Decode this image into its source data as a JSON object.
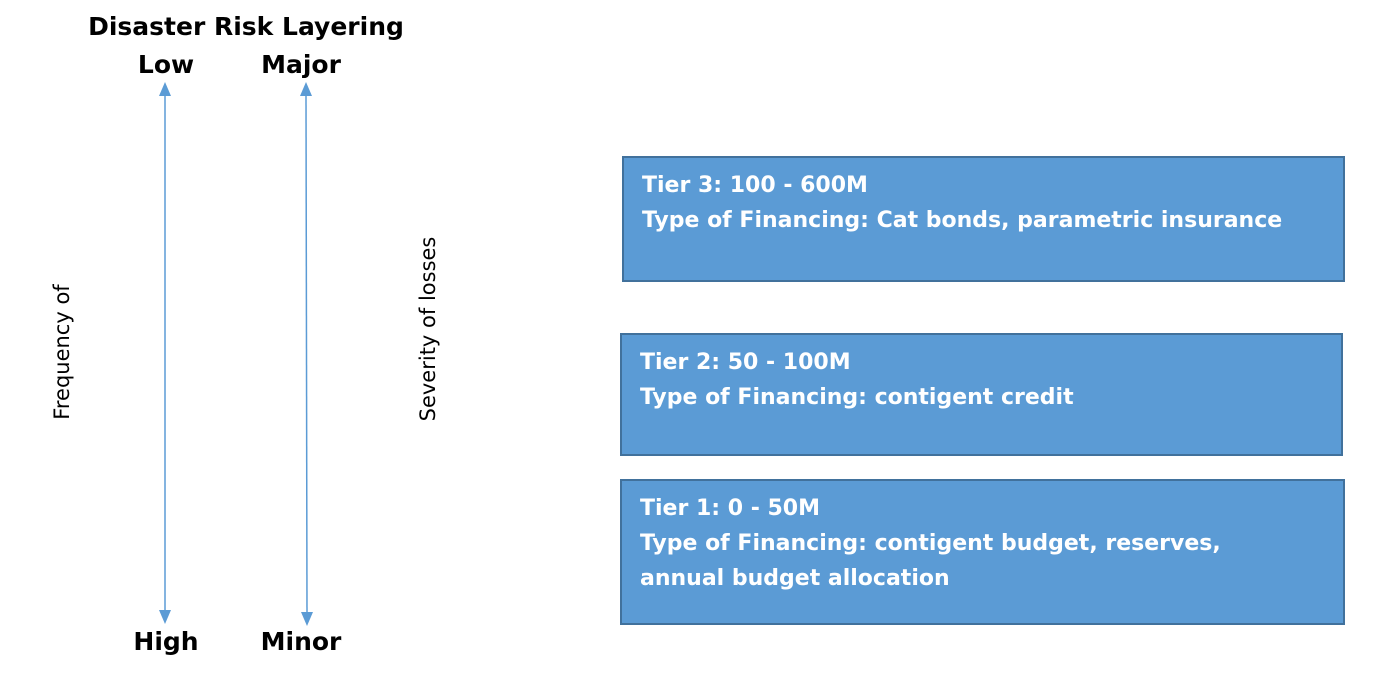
{
  "title": "Disaster Risk Layering",
  "frequency_axis": {
    "label": "Frequency of",
    "top_label": "Low",
    "bottom_label": "High"
  },
  "severity_axis": {
    "label": "Severity of losses",
    "top_label": "Major",
    "bottom_label": "Minor"
  },
  "tiers": [
    {
      "heading": "Tier 3: 100 - 600M",
      "financing": "Type of Financing: Cat bonds, parametric insurance"
    },
    {
      "heading": "Tier 2: 50 - 100M",
      "financing": "Type of Financing: contigent credit"
    },
    {
      "heading": "Tier 1: 0 - 50M",
      "financing": "Type of Financing: contigent budget, reserves, annual budget allocation"
    }
  ],
  "colors": {
    "tier_fill": "#5b9bd5",
    "tier_border": "#41719c",
    "arrow": "#5b9bd5"
  }
}
